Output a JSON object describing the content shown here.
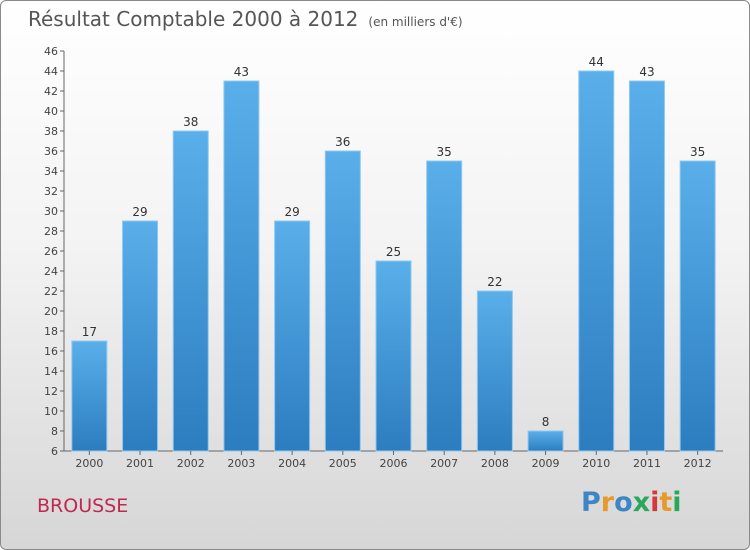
{
  "chart_data": {
    "type": "bar",
    "title": "Résultat Comptable 2000 à 2012",
    "unit": "(en milliers d'€)",
    "categories": [
      "2000",
      "2001",
      "2002",
      "2003",
      "2004",
      "2005",
      "2006",
      "2007",
      "2008",
      "2009",
      "2010",
      "2011",
      "2012"
    ],
    "values": [
      17,
      29,
      38,
      43,
      29,
      36,
      25,
      35,
      22,
      8,
      44,
      43,
      35
    ],
    "ylim": [
      6,
      46
    ],
    "yticks": [
      6,
      8,
      10,
      12,
      14,
      16,
      18,
      20,
      22,
      24,
      26,
      28,
      30,
      32,
      34,
      36,
      38,
      40,
      42,
      44,
      46
    ],
    "grid": false,
    "bar_color": "#3e93d6"
  },
  "commune": "BROUSSE",
  "brand": {
    "letters": [
      "P",
      "r",
      "o",
      "x",
      "i",
      "t",
      "i"
    ],
    "colors": [
      "#3d86c6",
      "#e69a2a",
      "#3d86c6",
      "#2aa85a",
      "#d43a3a",
      "#e69a2a",
      "#2aa85a"
    ]
  }
}
